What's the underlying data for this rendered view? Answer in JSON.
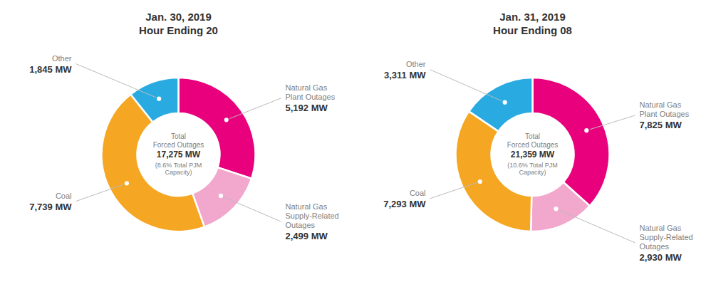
{
  "chart_data": [
    {
      "type": "donut",
      "title": "Jan. 30, 2019",
      "subtitle": "Hour Ending 20",
      "annotations": [
        "Total",
        "Forced Outages",
        "17,275 MW",
        "(8.6% Total PJM",
        "Capacity)"
      ],
      "categories": [
        "Natural Gas\nPlant Outages",
        "Natural Gas\nSupply-Related\nOutages",
        "Coal",
        "Other"
      ],
      "values": [
        5192,
        2499,
        7739,
        1845
      ],
      "value_labels": [
        "5,192 MW",
        "2,499 MW",
        "7,739 MW",
        "1,845 MW"
      ],
      "colors": [
        "#E8007D",
        "#F2A7CC",
        "#F5A623",
        "#29ABE2"
      ],
      "data_labels": true
    },
    {
      "type": "donut",
      "title": "Jan. 31, 2019",
      "subtitle": "Hour Ending 08",
      "annotations": [
        "Total",
        "Forced Outages",
        "21,359 MW",
        "(10.6% Total PJM",
        "Capacity)"
      ],
      "categories": [
        "Natural Gas\nPlant Outages",
        "Natural Gas\nSupply-Related\nOutages",
        "Coal",
        "Other"
      ],
      "values": [
        7825,
        2930,
        7293,
        3311
      ],
      "value_labels": [
        "7,825 MW",
        "2,930 MW",
        "7,293 MW",
        "3,311 MW"
      ],
      "colors": [
        "#E8007D",
        "#F2A7CC",
        "#F5A623",
        "#29ABE2"
      ],
      "data_labels": true
    }
  ]
}
